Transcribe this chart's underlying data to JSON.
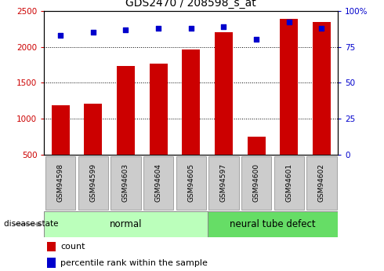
{
  "title": "GDS2470 / 208598_s_at",
  "categories": [
    "GSM94598",
    "GSM94599",
    "GSM94603",
    "GSM94604",
    "GSM94605",
    "GSM94597",
    "GSM94600",
    "GSM94601",
    "GSM94602"
  ],
  "counts": [
    1180,
    1210,
    1730,
    1760,
    1960,
    2200,
    750,
    2390,
    2340
  ],
  "percentiles": [
    83,
    85,
    87,
    88,
    88,
    89,
    80,
    92,
    88
  ],
  "bar_color": "#cc0000",
  "dot_color": "#0000cc",
  "ylim_left": [
    500,
    2500
  ],
  "ylim_right": [
    0,
    100
  ],
  "yticks_left": [
    500,
    1000,
    1500,
    2000,
    2500
  ],
  "yticks_right": [
    0,
    25,
    50,
    75,
    100
  ],
  "right_tick_labels": [
    "0",
    "25",
    "50",
    "75",
    "100%"
  ],
  "normal_group": [
    0,
    1,
    2,
    3,
    4
  ],
  "defect_group": [
    5,
    6,
    7,
    8
  ],
  "normal_label": "normal",
  "defect_label": "neural tube defect",
  "disease_state_label": "disease state",
  "legend_count": "count",
  "legend_percentile": "percentile rank within the sample",
  "normal_color": "#bbffbb",
  "defect_color": "#66dd66",
  "tick_label_bg": "#cccccc",
  "title_fontsize": 10,
  "axis_fontsize": 7.5
}
